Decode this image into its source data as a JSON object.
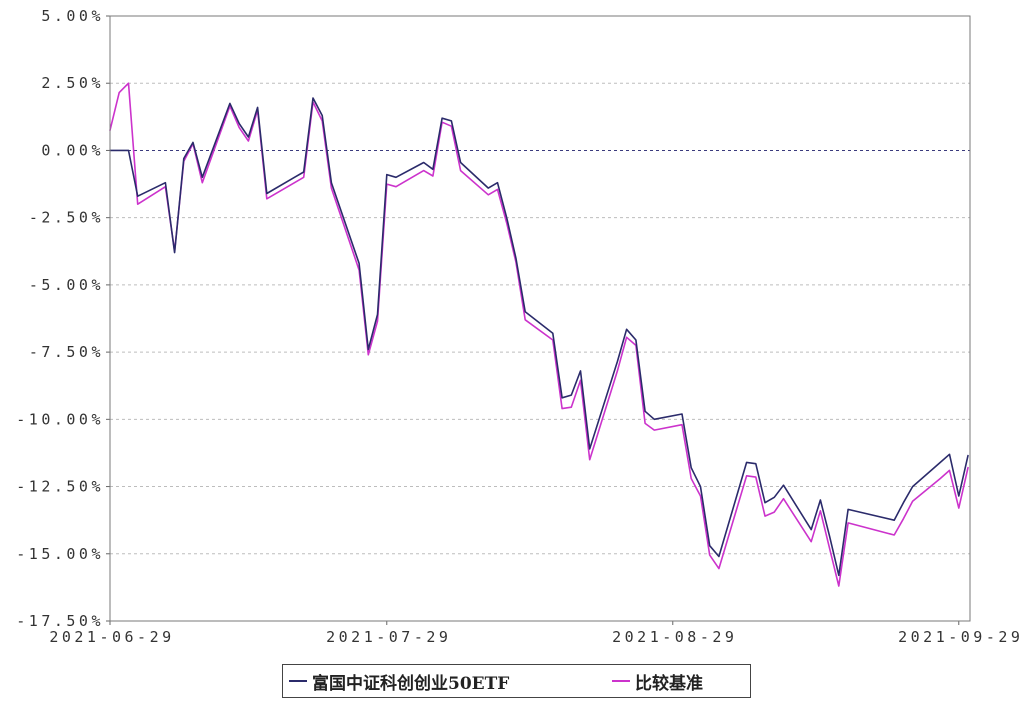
{
  "chart_data": {
    "type": "line",
    "ylim": [
      -17.5,
      5
    ],
    "xlim": [
      "2021-06-29",
      "2021-09-30"
    ],
    "grid": true,
    "legend_position": "bottom",
    "y_ticks": [
      {
        "value": 5,
        "label": "5.00%"
      },
      {
        "value": 2.5,
        "label": "2.50%"
      },
      {
        "value": 0,
        "label": "0.00%"
      },
      {
        "value": -2.5,
        "label": "-2.50%"
      },
      {
        "value": -5,
        "label": "-5.00%"
      },
      {
        "value": -7.5,
        "label": "-7.50%"
      },
      {
        "value": -10,
        "label": "-10.00%"
      },
      {
        "value": -12.5,
        "label": "-12.50%"
      },
      {
        "value": -15,
        "label": "-15.00%"
      },
      {
        "value": -17.5,
        "label": "-17.50%"
      }
    ],
    "x_ticks": [
      "2021-06-29",
      "2021-07-29",
      "2021-08-29",
      "2021-09-29"
    ],
    "x": [
      "2021-06-29",
      "2021-06-30",
      "2021-07-01",
      "2021-07-02",
      "2021-07-05",
      "2021-07-06",
      "2021-07-07",
      "2021-07-08",
      "2021-07-09",
      "2021-07-12",
      "2021-07-13",
      "2021-07-14",
      "2021-07-15",
      "2021-07-16",
      "2021-07-19",
      "2021-07-20",
      "2021-07-21",
      "2021-07-22",
      "2021-07-23",
      "2021-07-26",
      "2021-07-27",
      "2021-07-28",
      "2021-07-29",
      "2021-07-30",
      "2021-08-02",
      "2021-08-03",
      "2021-08-04",
      "2021-08-05",
      "2021-08-06",
      "2021-08-09",
      "2021-08-10",
      "2021-08-11",
      "2021-08-12",
      "2021-08-13",
      "2021-08-16",
      "2021-08-17",
      "2021-08-18",
      "2021-08-19",
      "2021-08-20",
      "2021-08-23",
      "2021-08-24",
      "2021-08-25",
      "2021-08-26",
      "2021-08-27",
      "2021-08-30",
      "2021-08-31",
      "2021-09-01",
      "2021-09-02",
      "2021-09-03",
      "2021-09-06",
      "2021-09-07",
      "2021-09-08",
      "2021-09-09",
      "2021-09-10",
      "2021-09-13",
      "2021-09-14",
      "2021-09-15",
      "2021-09-16",
      "2021-09-17",
      "2021-09-22",
      "2021-09-23",
      "2021-09-24",
      "2021-09-27",
      "2021-09-28",
      "2021-09-29",
      "2021-09-30"
    ],
    "series": [
      {
        "name": "富国中证科创创业50ETF",
        "color": "#2b2b6b",
        "values": [
          0.0,
          0.0,
          0.0,
          -1.7,
          -1.2,
          -3.8,
          -0.3,
          0.3,
          -1.0,
          1.75,
          1.0,
          0.5,
          1.6,
          -1.6,
          -1.0,
          -0.8,
          1.95,
          1.3,
          -1.2,
          -4.2,
          -7.4,
          -6.1,
          -0.9,
          -1.0,
          -0.45,
          -0.7,
          1.2,
          1.1,
          -0.45,
          -1.4,
          -1.2,
          -2.5,
          -4.0,
          -6.0,
          -6.8,
          -9.2,
          -9.1,
          -8.2,
          -11.1,
          -7.85,
          -6.65,
          -7.05,
          -9.7,
          -10.0,
          -9.8,
          -11.8,
          -12.5,
          -14.7,
          -15.1,
          -11.6,
          -11.65,
          -13.1,
          -12.9,
          -12.45,
          -14.1,
          -13.0,
          -14.35,
          -15.8,
          -13.35,
          -13.75,
          -13.1,
          -12.5,
          -11.6,
          -11.3,
          -12.85,
          -11.35
        ]
      },
      {
        "name": "比较基准",
        "color": "#cc33cc",
        "values": [
          0.75,
          2.15,
          2.5,
          -2.0,
          -1.35,
          -3.75,
          -0.4,
          0.25,
          -1.2,
          1.65,
          0.85,
          0.35,
          1.5,
          -1.8,
          -1.2,
          -1.0,
          1.8,
          1.1,
          -1.4,
          -4.45,
          -7.6,
          -6.35,
          -1.25,
          -1.35,
          -0.75,
          -0.95,
          1.05,
          0.9,
          -0.75,
          -1.65,
          -1.45,
          -2.7,
          -4.15,
          -6.3,
          -7.05,
          -9.6,
          -9.55,
          -8.55,
          -11.5,
          -8.2,
          -6.95,
          -7.25,
          -10.15,
          -10.4,
          -10.2,
          -12.2,
          -12.85,
          -15.05,
          -15.55,
          -12.1,
          -12.15,
          -13.6,
          -13.45,
          -12.95,
          -14.55,
          -13.4,
          -14.8,
          -16.2,
          -13.85,
          -14.3,
          -13.7,
          -13.05,
          -12.2,
          -11.9,
          -13.3,
          -11.8
        ]
      }
    ]
  }
}
